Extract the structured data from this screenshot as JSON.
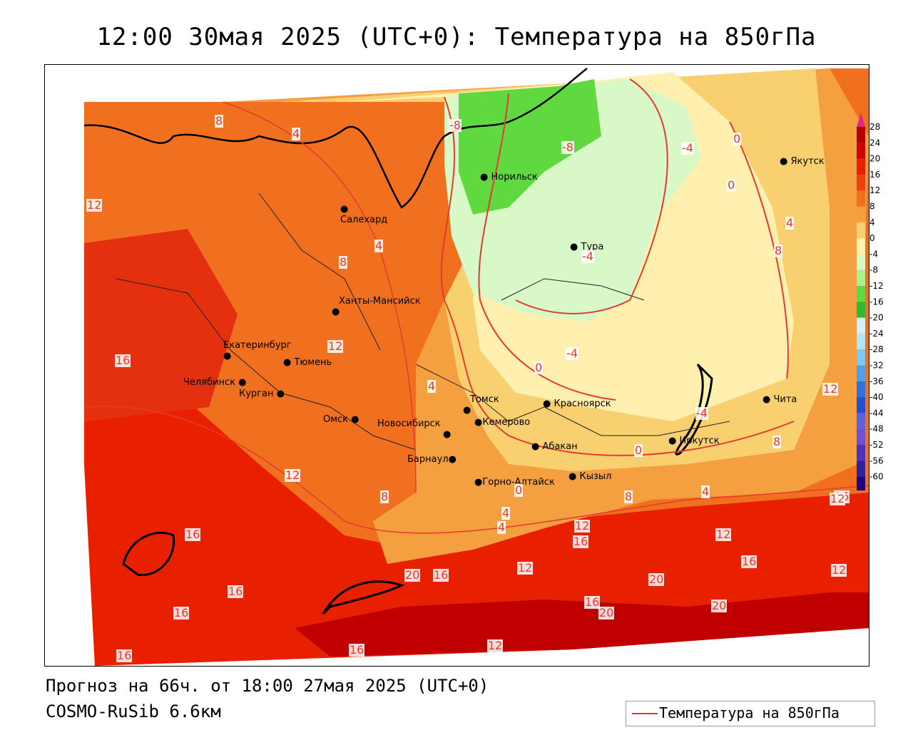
{
  "title": "12:00 30мая 2025 (UTC+0): Температура на 850гПа",
  "forecast_line": "Прогноз на 66ч. от 18:00 27мая 2025 (UTC+0)",
  "model_line": "COSMO-RuSib 6.6км",
  "legend_label": "Температура на 850гПа",
  "colors": {
    "contour": "#e53a2f",
    "top_arrow": "#e0287e",
    "bottom_arrow": "#7a2ad0"
  },
  "scale_labels": [
    "28",
    "24",
    "20",
    "16",
    "12",
    "8",
    "4",
    "0",
    "-4",
    "-8",
    "-12",
    "-16",
    "-20",
    "-24",
    "-28",
    "-32",
    "-36",
    "-40",
    "-44",
    "-48",
    "-52",
    "-56",
    "-60"
  ],
  "scale_colors": [
    "#b00000",
    "#d00000",
    "#e82000",
    "#f04010",
    "#f07020",
    "#f5a040",
    "#f8d070",
    "#fff0b0",
    "#d8f8c8",
    "#a8f090",
    "#60d840",
    "#30b830",
    "#d8f0f8",
    "#b0e8f8",
    "#80c8f0",
    "#50a0e8",
    "#3070e0",
    "#2050d0",
    "#6060e0",
    "#7050d8",
    "#5030c0",
    "#3020a0",
    "#200080"
  ],
  "cities": [
    {
      "name": "Норильск"
    },
    {
      "name": "Якутск"
    },
    {
      "name": "Салехард"
    },
    {
      "name": "Тура"
    },
    {
      "name": "Ханты-Мансийск"
    },
    {
      "name": "Екатеринбург"
    },
    {
      "name": "Тюмень"
    },
    {
      "name": "Челябинск"
    },
    {
      "name": "Курган"
    },
    {
      "name": "Омск"
    },
    {
      "name": "Новосибирск"
    },
    {
      "name": "Томск"
    },
    {
      "name": "Кемерово"
    },
    {
      "name": "Красноярск"
    },
    {
      "name": "Барнаул"
    },
    {
      "name": "Абакан"
    },
    {
      "name": "Горно-Алтайск"
    },
    {
      "name": "Кызыл"
    },
    {
      "name": "Иркутск"
    },
    {
      "name": "Чита"
    }
  ],
  "contour_labels": [
    "8",
    "4",
    "0",
    "-8",
    "-8",
    "-4",
    "0",
    "4",
    "8",
    "12",
    "8",
    "4",
    "-4",
    "0",
    "-4",
    "4",
    "12",
    "16",
    "12",
    "8",
    "16",
    "16",
    "16",
    "12",
    "16",
    "12",
    "12",
    "16",
    "12",
    "16",
    "20",
    "20",
    "16",
    "20",
    "16",
    "20",
    "16",
    "12",
    "8",
    "4",
    "4",
    "0",
    "0",
    "-4",
    "12",
    "8",
    "4",
    "16",
    "12"
  ]
}
